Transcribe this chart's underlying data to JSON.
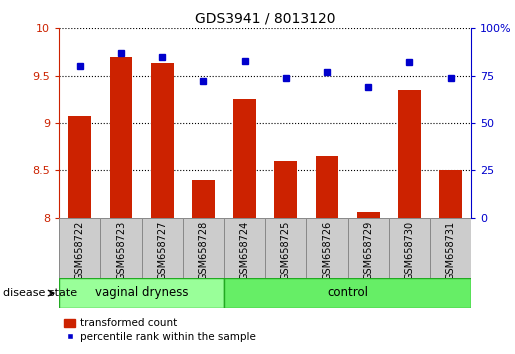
{
  "title": "GDS3941 / 8013120",
  "samples": [
    "GSM658722",
    "GSM658723",
    "GSM658727",
    "GSM658728",
    "GSM658724",
    "GSM658725",
    "GSM658726",
    "GSM658729",
    "GSM658730",
    "GSM658731"
  ],
  "bar_values": [
    9.07,
    9.7,
    9.63,
    8.4,
    9.25,
    8.6,
    8.65,
    8.06,
    9.35,
    8.5
  ],
  "dot_values": [
    80,
    87,
    85,
    72,
    83,
    74,
    77,
    69,
    82,
    74
  ],
  "ylim_left": [
    8.0,
    10.0
  ],
  "ylim_right": [
    0,
    100
  ],
  "yticks_left": [
    8.0,
    8.5,
    9.0,
    9.5,
    10.0
  ],
  "yticks_right": [
    0,
    25,
    50,
    75,
    100
  ],
  "bar_color": "#CC2200",
  "dot_color": "#0000CC",
  "grid_color": "#000000",
  "group_labels": [
    "vaginal dryness",
    "control"
  ],
  "group_colors": [
    "#99FF99",
    "#66EE66"
  ],
  "group_edge_color": "#22AA22",
  "n_vaginal": 4,
  "n_control": 6,
  "disease_state_label": "disease state",
  "legend_bar_label": "transformed count",
  "legend_dot_label": "percentile rank within the sample",
  "label_box_color": "#CCCCCC",
  "label_box_edge": "#888888",
  "fig_w": 5.15,
  "fig_h": 3.54,
  "dpi": 100
}
